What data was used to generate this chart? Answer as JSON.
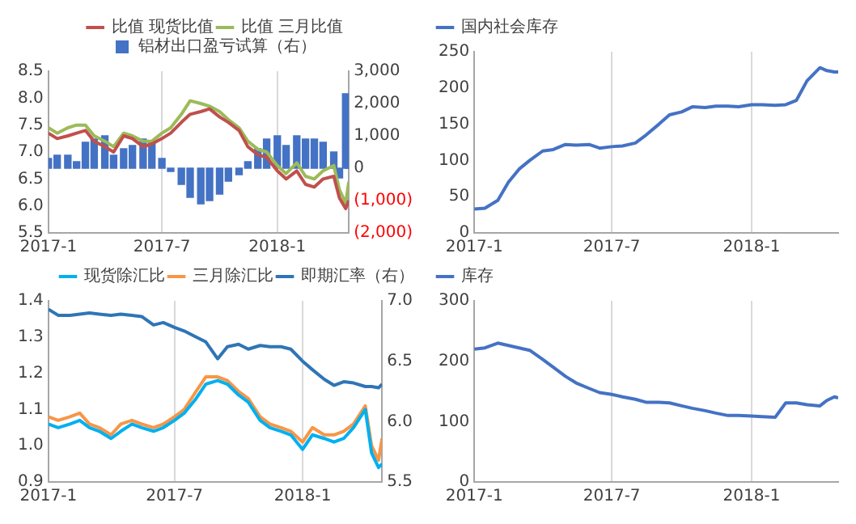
{
  "chart_data": [
    {
      "type": "line",
      "x": [
        "2017-01-01",
        "2017-01-15",
        "2017-02-01",
        "2017-02-15",
        "2017-03-01",
        "2017-03-15",
        "2017-04-01",
        "2017-04-15",
        "2017-05-01",
        "2017-05-15",
        "2017-06-01",
        "2017-06-15",
        "2017-07-01",
        "2017-07-15",
        "2017-08-01",
        "2017-08-15",
        "2017-09-01",
        "2017-09-15",
        "2017-10-01",
        "2017-10-15",
        "2017-11-01",
        "2017-11-15",
        "2017-12-01",
        "2017-12-15",
        "2018-01-01",
        "2018-01-15",
        "2018-02-01",
        "2018-02-15",
        "2018-03-01",
        "2018-03-15",
        "2018-04-01",
        "2018-04-10",
        "2018-04-20",
        "2018-04-25"
      ],
      "series": [
        {
          "name": "铝材出口盈亏试算（右）",
          "type": "bar",
          "axis": "y2",
          "color": "#4472c4",
          "values": [
            300,
            400,
            400,
            200,
            800,
            900,
            1000,
            400,
            600,
            700,
            900,
            800,
            300,
            -100,
            -500,
            -900,
            -1100,
            -1000,
            -800,
            -400,
            -200,
            200,
            600,
            900,
            1000,
            700,
            1000,
            900,
            900,
            800,
            500,
            -300,
            2300,
            1500
          ]
        },
        {
          "name": "比值 现货比值",
          "color": "#c0504d",
          "values": [
            7.35,
            7.25,
            7.3,
            7.35,
            7.4,
            7.2,
            7.1,
            7.0,
            7.3,
            7.25,
            7.1,
            7.15,
            7.25,
            7.35,
            7.55,
            7.7,
            7.75,
            7.8,
            7.65,
            7.55,
            7.4,
            7.1,
            6.95,
            6.9,
            6.65,
            6.5,
            6.65,
            6.4,
            6.35,
            6.5,
            6.55,
            6.15,
            5.95,
            6.1
          ]
        },
        {
          "name": "比值 三月比值",
          "color": "#9bbb59",
          "values": [
            7.45,
            7.35,
            7.45,
            7.5,
            7.5,
            7.3,
            7.2,
            7.1,
            7.35,
            7.3,
            7.2,
            7.2,
            7.35,
            7.45,
            7.7,
            7.95,
            7.9,
            7.85,
            7.75,
            7.6,
            7.45,
            7.2,
            7.05,
            7.0,
            6.75,
            6.6,
            6.8,
            6.55,
            6.5,
            6.65,
            6.75,
            6.3,
            6.05,
            6.45
          ]
        }
      ],
      "xlim": [
        "2017-01-01",
        "2018-04-25"
      ],
      "xticks": [
        {
          "value": "2017-01",
          "label": "2017-1"
        },
        {
          "value": "2017-07",
          "label": "2017-7"
        },
        {
          "value": "2018-01",
          "label": "2018-1"
        }
      ],
      "ylim": [
        5.5,
        8.5
      ],
      "yticks": [
        {
          "value": 5.5,
          "label": "5.5"
        },
        {
          "value": 6,
          "label": "6.0"
        },
        {
          "value": 6.5,
          "label": "6.5"
        },
        {
          "value": 7,
          "label": "7.0"
        },
        {
          "value": 7.5,
          "label": "7.5"
        },
        {
          "value": 8,
          "label": "8.0"
        },
        {
          "value": 8.5,
          "label": "8.5"
        }
      ],
      "y2lim": [
        -2000,
        3000
      ],
      "y2ticks": [
        {
          "value": -2000,
          "label": "(2,000)"
        },
        {
          "value": -1000,
          "label": "(1,000)"
        },
        0,
        {
          "value": 1000,
          "label": "1,000"
        },
        {
          "value": 2000,
          "label": "2,000"
        },
        {
          "value": 3000,
          "label": "3,000"
        }
      ],
      "grid": "x",
      "legend": "top"
    },
    {
      "type": "line",
      "x": [
        "2017-01-01",
        "2017-01-15",
        "2017-02-01",
        "2017-02-15",
        "2017-03-01",
        "2017-03-15",
        "2017-04-01",
        "2017-04-15",
        "2017-05-01",
        "2017-05-15",
        "2017-06-01",
        "2017-06-15",
        "2017-07-01",
        "2017-07-15",
        "2017-08-01",
        "2017-08-15",
        "2017-09-01",
        "2017-09-15",
        "2017-10-01",
        "2017-10-15",
        "2017-11-01",
        "2017-11-15",
        "2017-12-01",
        "2017-12-15",
        "2018-01-01",
        "2018-01-15",
        "2018-02-01",
        "2018-02-15",
        "2018-03-01",
        "2018-03-15",
        "2018-04-01",
        "2018-04-10",
        "2018-04-20",
        "2018-04-25"
      ],
      "series": [
        {
          "name": "国内社会库存",
          "color": "#4472c4",
          "values": [
            33,
            34,
            45,
            70,
            88,
            100,
            113,
            115,
            122,
            121,
            122,
            117,
            119,
            120,
            124,
            135,
            150,
            163,
            167,
            174,
            173,
            175,
            175,
            174,
            177,
            177,
            176,
            177,
            183,
            210,
            228,
            224,
            222,
            222
          ]
        }
      ],
      "xlim": [
        "2017-01-01",
        "2018-04-25"
      ],
      "xticks": [
        {
          "value": "2017-01",
          "label": "2017-1"
        },
        {
          "value": "2017-07",
          "label": "2017-7"
        },
        {
          "value": "2018-01",
          "label": "2018-1"
        }
      ],
      "ylim": [
        0,
        250
      ],
      "yticks": [
        0,
        50,
        100,
        150,
        200,
        250
      ],
      "grid": "x",
      "legend": "top left"
    },
    {
      "type": "line",
      "x": [
        "2017-01-01",
        "2017-01-15",
        "2017-02-01",
        "2017-02-15",
        "2017-03-01",
        "2017-03-15",
        "2017-04-01",
        "2017-04-15",
        "2017-05-01",
        "2017-05-15",
        "2017-06-01",
        "2017-06-15",
        "2017-07-01",
        "2017-07-15",
        "2017-08-01",
        "2017-08-15",
        "2017-09-01",
        "2017-09-15",
        "2017-10-01",
        "2017-10-15",
        "2017-11-01",
        "2017-11-15",
        "2017-12-01",
        "2017-12-15",
        "2018-01-01",
        "2018-01-15",
        "2018-02-01",
        "2018-02-15",
        "2018-03-01",
        "2018-03-15",
        "2018-04-01",
        "2018-04-10",
        "2018-04-20",
        "2018-04-25"
      ],
      "series": [
        {
          "name": "现货除汇比",
          "color": "#00b0f0",
          "values": [
            1.06,
            1.05,
            1.06,
            1.07,
            1.05,
            1.04,
            1.02,
            1.04,
            1.06,
            1.05,
            1.04,
            1.05,
            1.07,
            1.09,
            1.13,
            1.17,
            1.18,
            1.17,
            1.14,
            1.12,
            1.07,
            1.05,
            1.04,
            1.03,
            0.99,
            1.03,
            1.02,
            1.01,
            1.02,
            1.05,
            1.1,
            0.98,
            0.94,
            0.95
          ]
        },
        {
          "name": "三月除汇比",
          "color": "#f79646",
          "values": [
            1.08,
            1.07,
            1.08,
            1.09,
            1.06,
            1.05,
            1.03,
            1.06,
            1.07,
            1.06,
            1.05,
            1.06,
            1.08,
            1.1,
            1.15,
            1.19,
            1.19,
            1.18,
            1.15,
            1.13,
            1.08,
            1.06,
            1.05,
            1.04,
            1.01,
            1.05,
            1.03,
            1.03,
            1.04,
            1.06,
            1.11,
            1.0,
            0.96,
            1.02
          ]
        },
        {
          "name": "即期汇率（右）",
          "axis": "y2",
          "color": "#2e75b6",
          "values": [
            6.93,
            6.88,
            6.88,
            6.89,
            6.9,
            6.89,
            6.88,
            6.89,
            6.88,
            6.87,
            6.8,
            6.82,
            6.78,
            6.75,
            6.7,
            6.66,
            6.52,
            6.62,
            6.64,
            6.6,
            6.63,
            6.62,
            6.62,
            6.6,
            6.5,
            6.43,
            6.35,
            6.3,
            6.33,
            6.32,
            6.29,
            6.29,
            6.28,
            6.31
          ]
        }
      ],
      "xlim": [
        "2017-01-01",
        "2018-04-25"
      ],
      "xticks": [
        {
          "value": "2017-01",
          "label": "2017-1"
        },
        {
          "value": "2017-07",
          "label": "2017-7"
        },
        {
          "value": "2018-01",
          "label": "2018-1"
        }
      ],
      "ylim": [
        0.9,
        1.4
      ],
      "yticks": [
        {
          "value": 0.9,
          "label": "0.9"
        },
        {
          "value": 1,
          "label": "1.0"
        },
        {
          "value": 1.1,
          "label": "1.1"
        },
        {
          "value": 1.2,
          "label": "1.2"
        },
        {
          "value": 1.3,
          "label": "1.3"
        },
        {
          "value": 1.4,
          "label": "1.4"
        }
      ],
      "y2lim": [
        5.5,
        7
      ],
      "y2ticks": [
        {
          "value": 5.5,
          "label": "5.5"
        },
        {
          "value": 6,
          "label": "6.0"
        },
        {
          "value": 6.5,
          "label": "6.5"
        },
        {
          "value": 7,
          "label": "7.0"
        }
      ],
      "grid": "x",
      "legend": "top right"
    },
    {
      "type": "line",
      "x": [
        "2017-01-01",
        "2017-01-15",
        "2017-02-01",
        "2017-02-15",
        "2017-03-01",
        "2017-03-15",
        "2017-04-01",
        "2017-04-15",
        "2017-05-01",
        "2017-05-15",
        "2017-06-01",
        "2017-06-15",
        "2017-07-01",
        "2017-07-15",
        "2017-08-01",
        "2017-08-15",
        "2017-09-01",
        "2017-09-15",
        "2017-10-01",
        "2017-10-15",
        "2017-11-01",
        "2017-11-15",
        "2017-12-01",
        "2017-12-15",
        "2018-01-01",
        "2018-01-15",
        "2018-02-01",
        "2018-02-15",
        "2018-03-01",
        "2018-03-15",
        "2018-04-01",
        "2018-04-10",
        "2018-04-20",
        "2018-04-25"
      ],
      "series": [
        {
          "name": "库存",
          "color": "#4472c4",
          "values": [
            220,
            222,
            230,
            226,
            222,
            218,
            203,
            190,
            175,
            164,
            155,
            148,
            145,
            141,
            137,
            132,
            132,
            131,
            126,
            122,
            118,
            114,
            110,
            110,
            109,
            108,
            107,
            131,
            131,
            128,
            126,
            135,
            141,
            139
          ]
        }
      ],
      "xlim": [
        "2017-01-01",
        "2018-04-25"
      ],
      "xticks": [
        {
          "value": "2017-01",
          "label": "2017-1"
        },
        {
          "value": "2017-07",
          "label": "2017-7"
        },
        {
          "value": "2018-01",
          "label": "2018-1"
        }
      ],
      "ylim": [
        0,
        300
      ],
      "yticks": [
        0,
        100,
        200,
        300
      ],
      "grid": "x",
      "legend": "top left"
    }
  ]
}
